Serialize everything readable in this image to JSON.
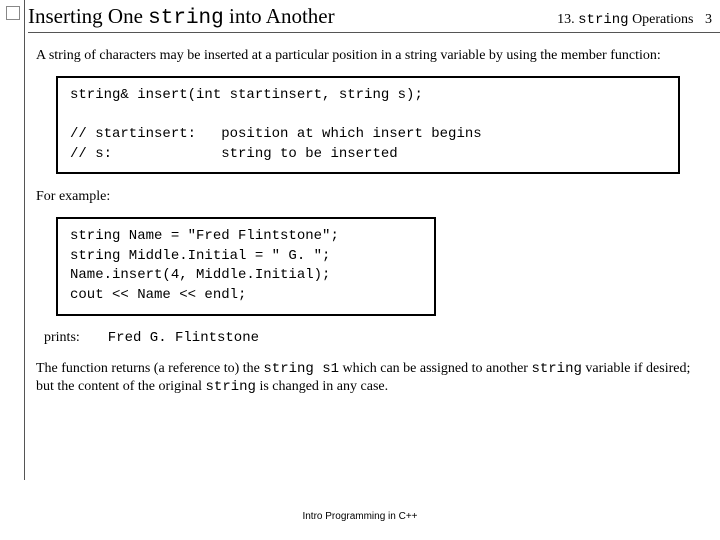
{
  "header": {
    "title_pre": "Inserting One ",
    "title_code": "string",
    "title_post": " into Another",
    "chapter_pre": "13. ",
    "chapter_code": "string",
    "chapter_post": " Operations",
    "page": "3"
  },
  "para1": "A string of characters may be inserted at a particular position in a string variable by using the member function:",
  "codebox1": "string& insert(int startinsert, string s);\n\n// startinsert:   position at which insert begins\n// s:             string to be inserted",
  "para2": "For example:",
  "codebox2": "string Name = \"Fred Flintstone\";\nstring Middle.Initial = \" G. \";\nName.insert(4, Middle.Initial);\ncout << Name << endl;",
  "prints_label": "prints:",
  "prints_output": "Fred G. Flintstone",
  "para3_a": "The function returns (a reference to) the ",
  "para3_b": "string s1",
  "para3_c": " which can be assigned to another ",
  "para3_d": "string",
  "para3_e": " variable if desired; but the content of the original ",
  "para3_f": "string",
  "para3_g": " is changed in any case.",
  "footer": "Intro Programming in C++"
}
